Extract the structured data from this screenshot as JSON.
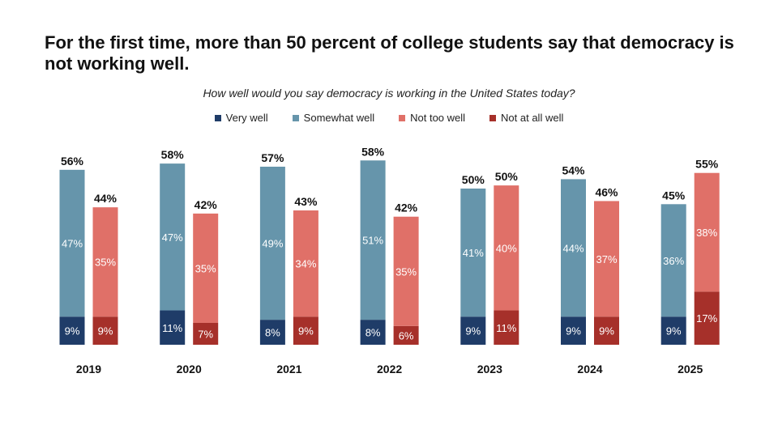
{
  "chart_data": {
    "type": "bar",
    "title": "For the first time, more than 50 percent of college students say that democracy is not working well.",
    "subtitle": "How well would you say democracy is working in the United States today?",
    "categories": [
      "2019",
      "2020",
      "2021",
      "2022",
      "2023",
      "2024",
      "2025"
    ],
    "series": [
      {
        "name": "Very well",
        "color": "#1f3c68",
        "values": [
          9,
          11,
          8,
          8,
          9,
          9,
          9
        ]
      },
      {
        "name": "Somewhat well",
        "color": "#6695ab",
        "values": [
          47,
          47,
          49,
          51,
          41,
          44,
          36
        ]
      },
      {
        "name": "Not too well",
        "color": "#e07068",
        "values": [
          35,
          35,
          34,
          35,
          40,
          37,
          38
        ]
      },
      {
        "name": "Not at all well",
        "color": "#a6302a",
        "values": [
          9,
          7,
          9,
          6,
          11,
          9,
          17
        ]
      }
    ],
    "totals": {
      "well": [
        56,
        58,
        57,
        58,
        50,
        54,
        45
      ],
      "not_well": [
        44,
        42,
        43,
        42,
        50,
        46,
        55
      ]
    },
    "stacks": [
      {
        "series": [
          0,
          1
        ],
        "total_key": "well"
      },
      {
        "series": [
          3,
          2
        ],
        "total_key": "not_well"
      }
    ],
    "value_suffix": "%",
    "ylim": [
      0,
      60
    ],
    "grid": false,
    "legend_position": "top"
  }
}
